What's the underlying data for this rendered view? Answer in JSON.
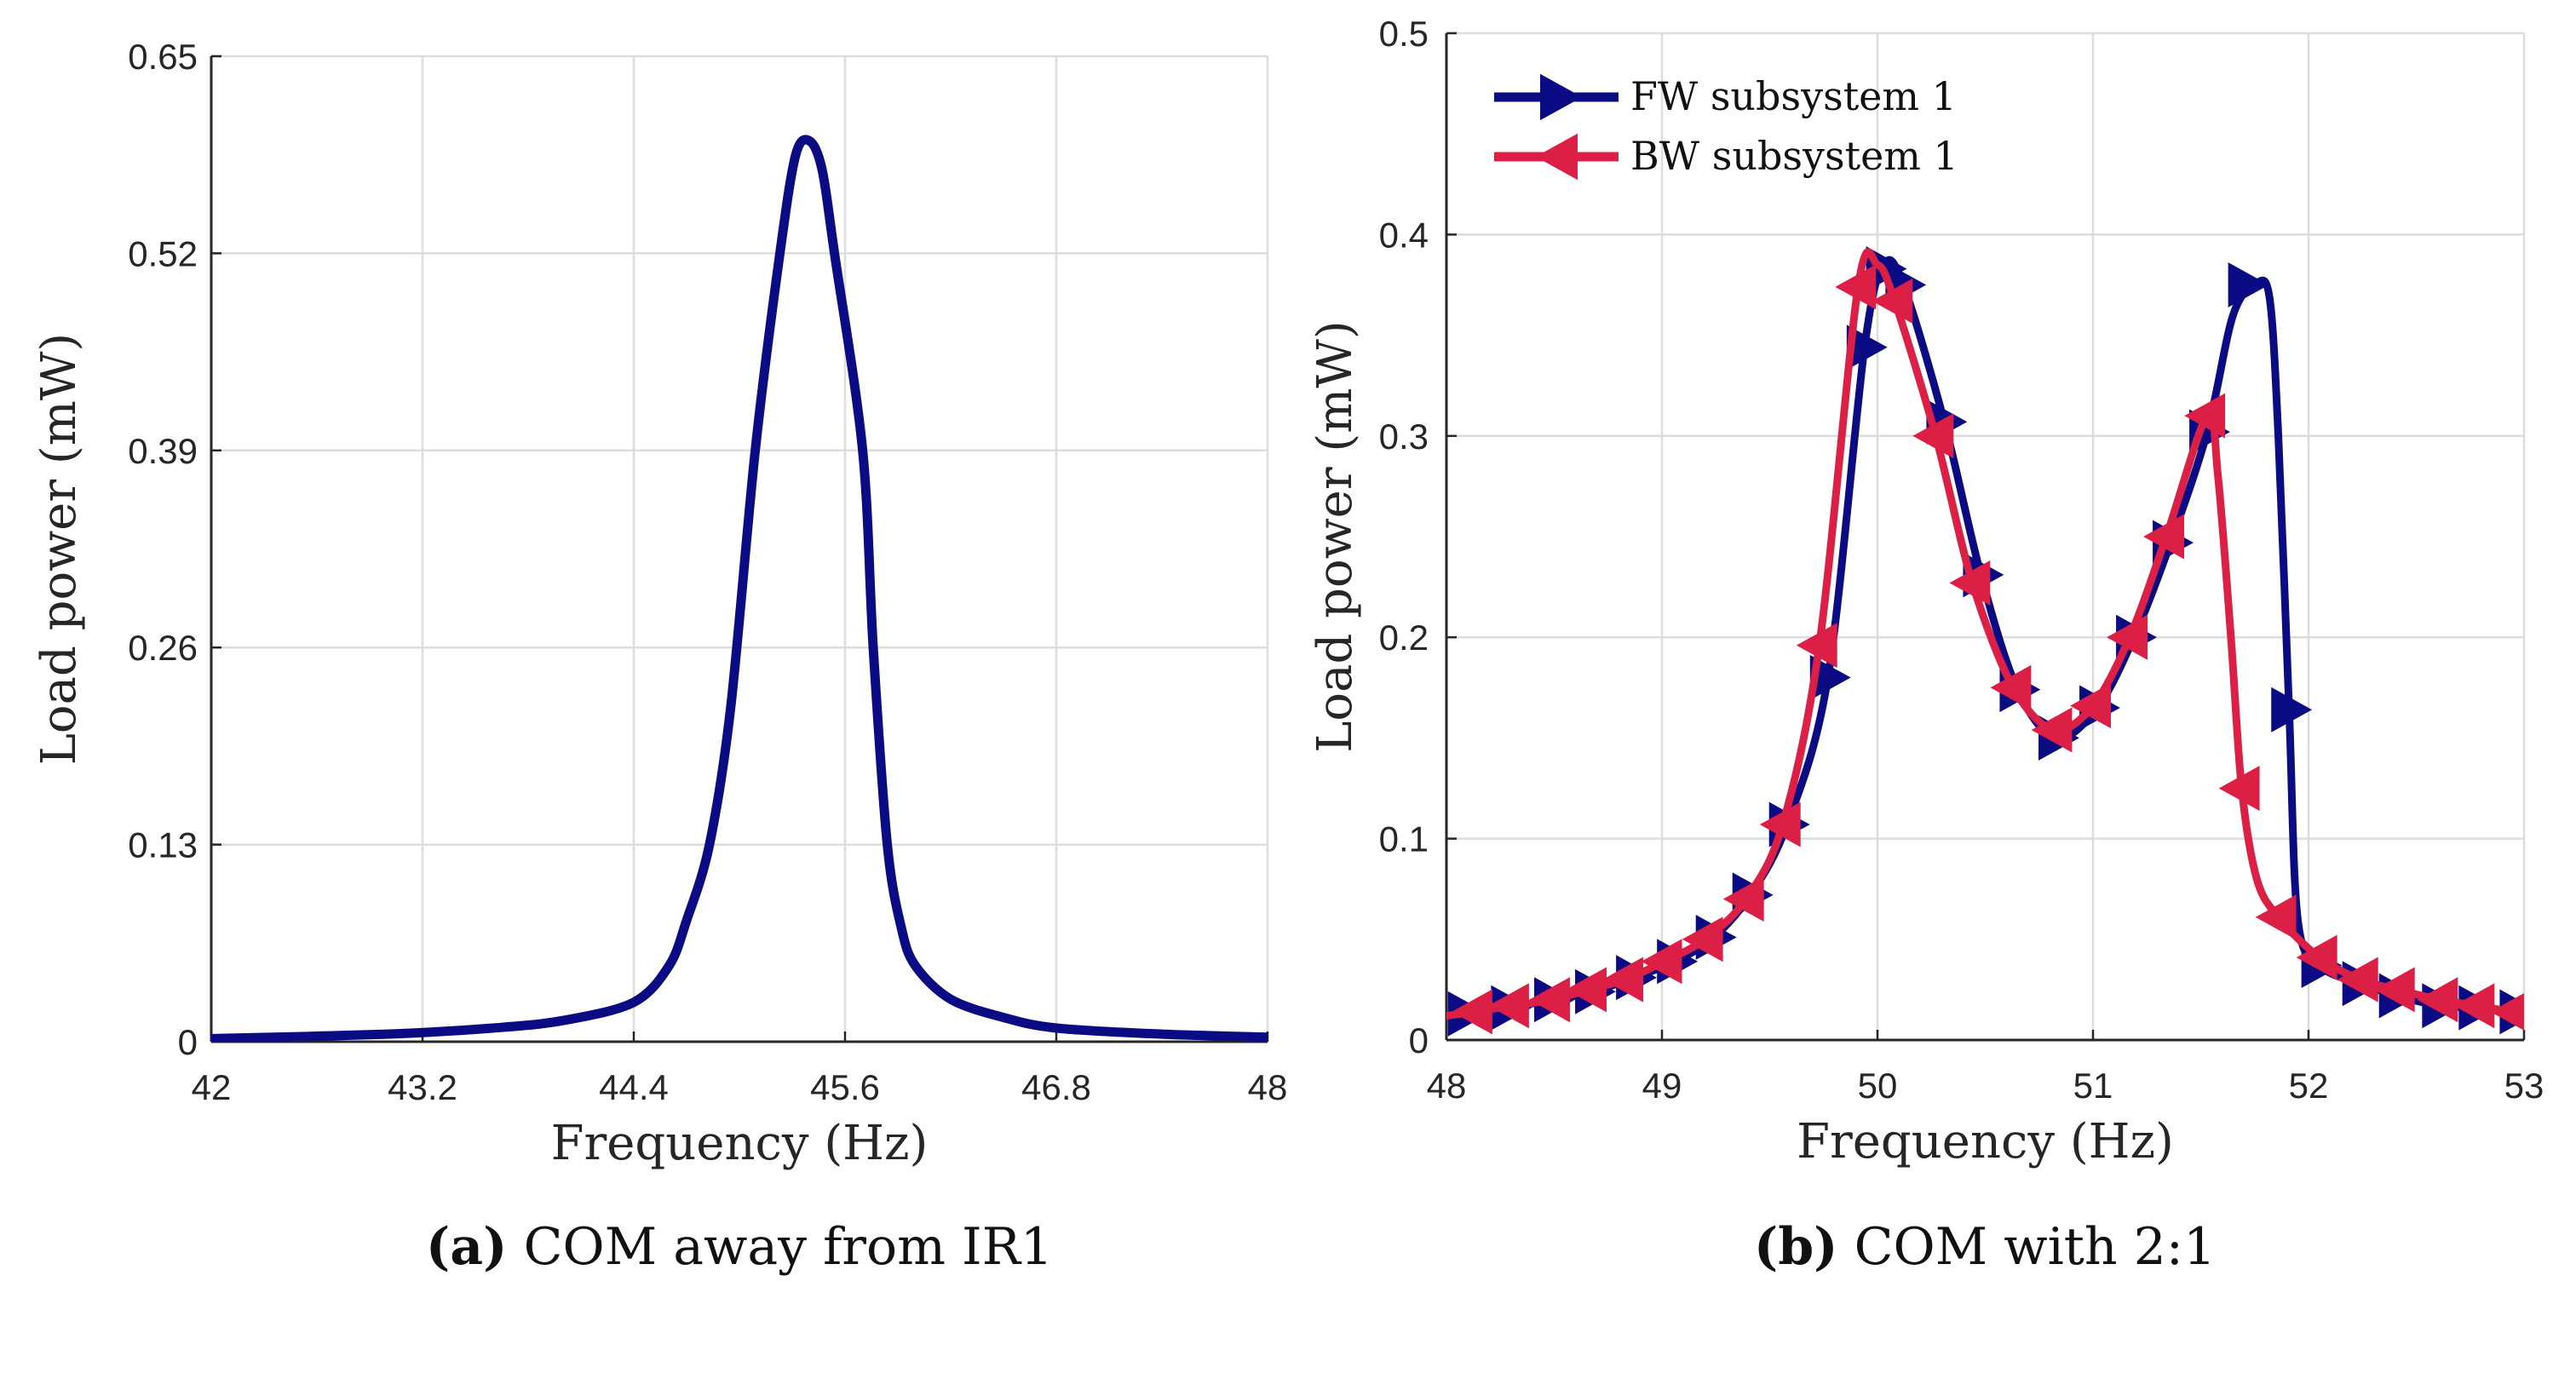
{
  "colors": {
    "fw": "#0b0b84",
    "bw": "#dc1f45",
    "grid": "#dcdcdc",
    "axis": "#262626"
  },
  "chart_data": [
    {
      "type": "line",
      "caption_letter": "(a)",
      "caption_text": " COM away from IR1",
      "xlabel": "Frequency (Hz)",
      "ylabel": "Load power (mW)",
      "xlim": [
        42,
        48
      ],
      "ylim": [
        0,
        0.65
      ],
      "xticks": [
        42,
        43.2,
        44.4,
        45.6,
        46.8,
        48
      ],
      "xtick_labels": [
        "42",
        "43.2",
        "44.4",
        "45.6",
        "46.8",
        "48"
      ],
      "yticks": [
        0,
        0.13,
        0.26,
        0.39,
        0.52,
        0.65
      ],
      "ytick_labels": [
        "0",
        "0.13",
        "0.26",
        "0.39",
        "0.52",
        "0.65"
      ],
      "grid": true,
      "series": [
        {
          "name": "Load power",
          "color_key": "fw",
          "line": [
            [
              42,
              0.002
            ],
            [
              43,
              0.005
            ],
            [
              43.6,
              0.009
            ],
            [
              44,
              0.014
            ],
            [
              44.4,
              0.026
            ],
            [
              44.6,
              0.05
            ],
            [
              44.7,
              0.08
            ],
            [
              44.83,
              0.13
            ],
            [
              44.95,
              0.22
            ],
            [
              45.09,
              0.39
            ],
            [
              45.23,
              0.52
            ],
            [
              45.32,
              0.585
            ],
            [
              45.4,
              0.594
            ],
            [
              45.47,
              0.575
            ],
            [
              45.54,
              0.52
            ],
            [
              45.7,
              0.39
            ],
            [
              45.76,
              0.26
            ],
            [
              45.84,
              0.13
            ],
            [
              45.92,
              0.075
            ],
            [
              46.0,
              0.05
            ],
            [
              46.2,
              0.028
            ],
            [
              46.5,
              0.016
            ],
            [
              46.8,
              0.009
            ],
            [
              47.4,
              0.005
            ],
            [
              48,
              0.003
            ]
          ],
          "markers": []
        }
      ]
    },
    {
      "type": "line",
      "caption_letter": "(b)",
      "caption_text": " COM with 2:1",
      "xlabel": "Frequency (Hz)",
      "ylabel": "Load power (mW)",
      "xlim": [
        48,
        53
      ],
      "ylim": [
        0,
        0.5
      ],
      "xticks": [
        48,
        49,
        50,
        51,
        52,
        53
      ],
      "xtick_labels": [
        "48",
        "49",
        "50",
        "51",
        "52",
        "53"
      ],
      "yticks": [
        0,
        0.1,
        0.2,
        0.3,
        0.4,
        0.5
      ],
      "ytick_labels": [
        "0",
        "0.1",
        "0.2",
        "0.3",
        "0.4",
        "0.5"
      ],
      "grid": true,
      "legend": "top-left",
      "series": [
        {
          "name": "FW subsystem 1",
          "color_key": "fw",
          "marker": "triangle-right",
          "markers": [
            [
              48.09,
              0.013
            ],
            [
              48.29,
              0.016
            ],
            [
              48.49,
              0.02
            ],
            [
              48.68,
              0.024
            ],
            [
              48.87,
              0.031
            ],
            [
              49.06,
              0.039
            ],
            [
              49.24,
              0.051
            ],
            [
              49.41,
              0.072
            ],
            [
              49.58,
              0.107
            ],
            [
              49.77,
              0.18
            ],
            [
              49.94,
              0.344
            ],
            [
              50.03,
              0.383
            ],
            [
              50.12,
              0.375
            ],
            [
              50.31,
              0.307
            ],
            [
              50.48,
              0.231
            ],
            [
              50.65,
              0.174
            ],
            [
              50.83,
              0.15
            ],
            [
              51.02,
              0.165
            ],
            [
              51.19,
              0.2
            ],
            [
              51.36,
              0.247
            ],
            [
              51.53,
              0.302
            ],
            [
              51.71,
              0.375
            ],
            [
              51.91,
              0.164
            ],
            [
              52.05,
              0.037
            ],
            [
              52.24,
              0.028
            ],
            [
              52.41,
              0.022
            ],
            [
              52.61,
              0.017
            ],
            [
              52.78,
              0.016
            ],
            [
              52.97,
              0.014
            ]
          ],
          "line": [
            [
              48,
              0.012
            ],
            [
              48.09,
              0.013
            ],
            [
              48.29,
              0.016
            ],
            [
              48.49,
              0.02
            ],
            [
              48.68,
              0.024
            ],
            [
              48.87,
              0.031
            ],
            [
              49.06,
              0.039
            ],
            [
              49.24,
              0.051
            ],
            [
              49.41,
              0.072
            ],
            [
              49.58,
              0.107
            ],
            [
              49.77,
              0.18
            ],
            [
              49.94,
              0.344
            ],
            [
              50.03,
              0.385
            ],
            [
              50.12,
              0.375
            ],
            [
              50.31,
              0.307
            ],
            [
              50.48,
              0.231
            ],
            [
              50.65,
              0.174
            ],
            [
              50.83,
              0.15
            ],
            [
              51.02,
              0.165
            ],
            [
              51.19,
              0.2
            ],
            [
              51.36,
              0.247
            ],
            [
              51.53,
              0.302
            ],
            [
              51.65,
              0.36
            ],
            [
              51.76,
              0.376
            ],
            [
              51.82,
              0.368
            ],
            [
              51.86,
              0.3
            ],
            [
              51.91,
              0.164
            ],
            [
              51.95,
              0.06
            ],
            [
              52.05,
              0.037
            ],
            [
              52.24,
              0.028
            ],
            [
              52.41,
              0.022
            ],
            [
              52.61,
              0.017
            ],
            [
              52.78,
              0.016
            ],
            [
              53,
              0.013
            ]
          ]
        },
        {
          "name": "BW subsystem 1",
          "color_key": "bw",
          "marker": "triangle-left",
          "markers": [
            [
              48.13,
              0.014
            ],
            [
              48.3,
              0.017
            ],
            [
              48.49,
              0.02
            ],
            [
              48.66,
              0.025
            ],
            [
              48.83,
              0.03
            ],
            [
              49.01,
              0.039
            ],
            [
              49.2,
              0.05
            ],
            [
              49.39,
              0.07
            ],
            [
              49.56,
              0.107
            ],
            [
              49.73,
              0.196
            ],
            [
              49.91,
              0.374
            ],
            [
              50.08,
              0.367
            ],
            [
              50.27,
              0.3
            ],
            [
              50.44,
              0.227
            ],
            [
              50.63,
              0.175
            ],
            [
              50.82,
              0.154
            ],
            [
              51.0,
              0.166
            ],
            [
              51.17,
              0.2
            ],
            [
              51.34,
              0.25
            ],
            [
              51.53,
              0.31
            ],
            [
              51.69,
              0.125
            ],
            [
              51.86,
              0.061
            ],
            [
              52.05,
              0.041
            ],
            [
              52.24,
              0.03
            ],
            [
              52.41,
              0.025
            ],
            [
              52.61,
              0.02
            ],
            [
              52.78,
              0.017
            ],
            [
              52.95,
              0.014
            ]
          ],
          "line": [
            [
              48,
              0.012
            ],
            [
              48.13,
              0.014
            ],
            [
              48.3,
              0.017
            ],
            [
              48.49,
              0.02
            ],
            [
              48.66,
              0.025
            ],
            [
              48.83,
              0.03
            ],
            [
              49.01,
              0.039
            ],
            [
              49.2,
              0.05
            ],
            [
              49.39,
              0.07
            ],
            [
              49.56,
              0.107
            ],
            [
              49.73,
              0.196
            ],
            [
              49.91,
              0.374
            ],
            [
              50.0,
              0.385
            ],
            [
              50.08,
              0.367
            ],
            [
              50.27,
              0.3
            ],
            [
              50.44,
              0.227
            ],
            [
              50.63,
              0.175
            ],
            [
              50.82,
              0.154
            ],
            [
              51.0,
              0.166
            ],
            [
              51.17,
              0.2
            ],
            [
              51.34,
              0.25
            ],
            [
              51.53,
              0.31
            ],
            [
              51.58,
              0.28
            ],
            [
              51.64,
              0.2
            ],
            [
              51.69,
              0.125
            ],
            [
              51.76,
              0.08
            ],
            [
              51.86,
              0.061
            ],
            [
              52.05,
              0.041
            ],
            [
              52.24,
              0.03
            ],
            [
              52.41,
              0.025
            ],
            [
              52.61,
              0.02
            ],
            [
              52.78,
              0.017
            ],
            [
              53,
              0.013
            ]
          ]
        }
      ]
    }
  ]
}
